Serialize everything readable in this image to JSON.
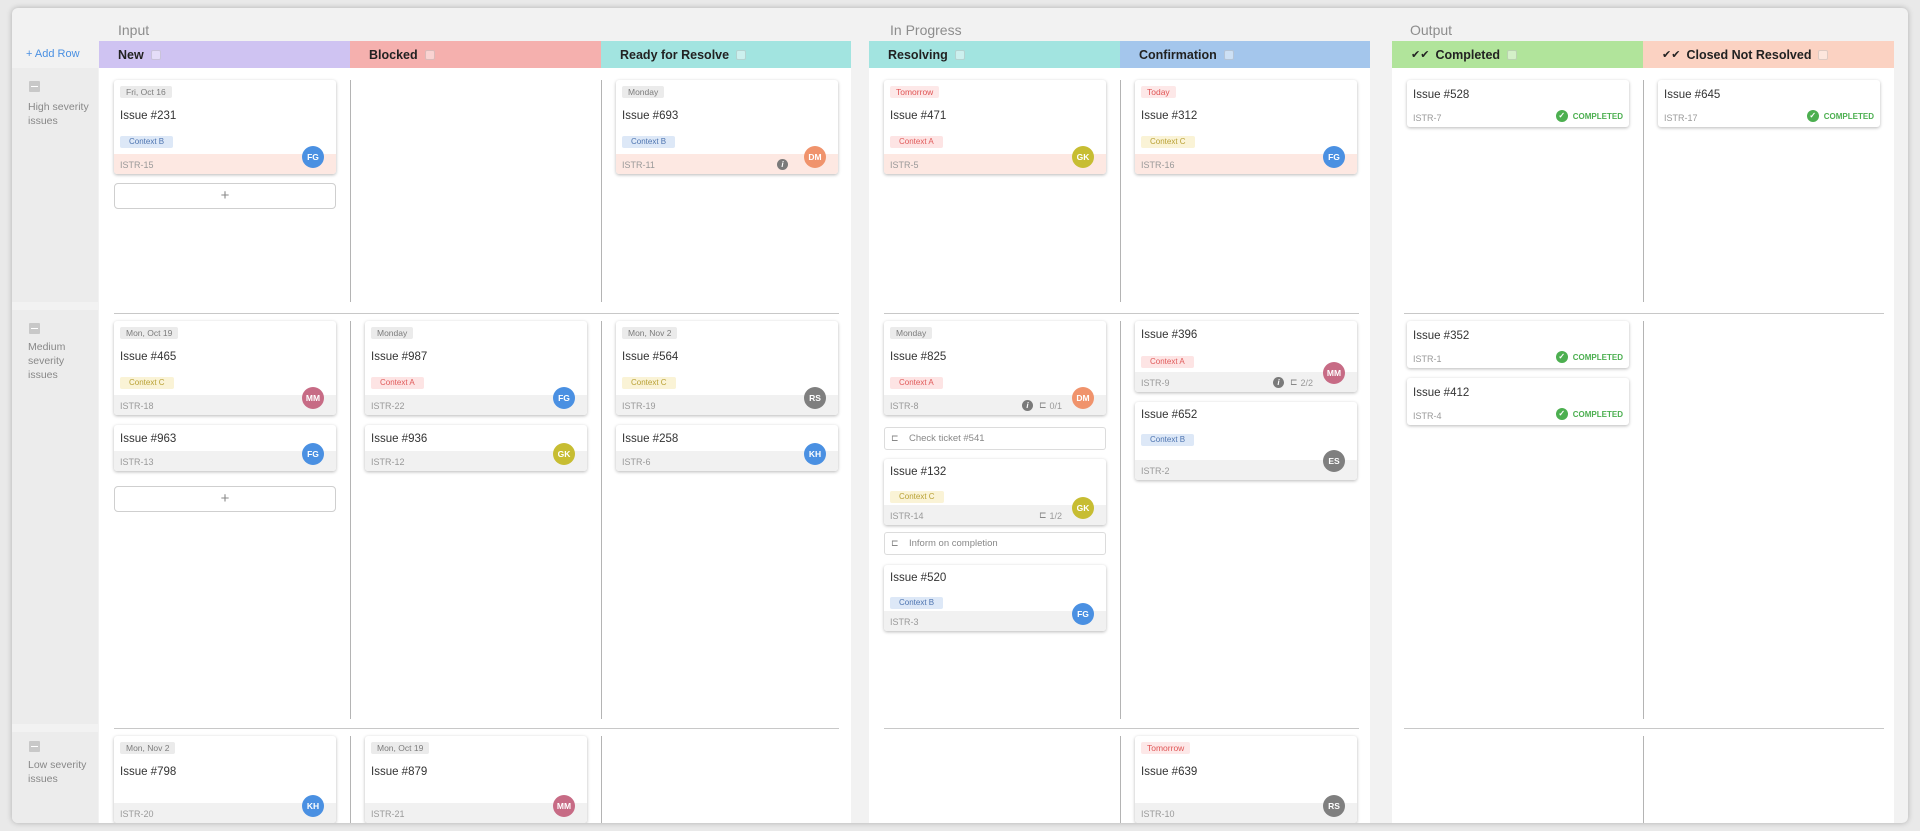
{
  "groups": {
    "input": "Input",
    "in_progress": "In Progress",
    "output": "Output"
  },
  "add_row": "+ Add Row",
  "columns": [
    {
      "label": "New",
      "color": "#cfc3f2"
    },
    {
      "label": "Blocked",
      "color": "#f5b0ae"
    },
    {
      "label": "Ready for Resolve",
      "color": "#a2e4e0"
    },
    {
      "label": "Resolving",
      "color": "#a2e4e0"
    },
    {
      "label": "Confirmation",
      "color": "#a4c6ec"
    },
    {
      "label": "Completed",
      "color": "#b1e49b"
    },
    {
      "label": "Closed Not Resolved",
      "color": "#fbd2c2"
    }
  ],
  "lanes": [
    "High severity issues",
    "Medium severity issues",
    "Low severity issues"
  ],
  "colors": {
    "FG": "#4a90e2",
    "MM": "#c76b85",
    "DM": "#f0936c",
    "GK": "#c7bd32",
    "RS": "#7f7f7f",
    "KH": "#4a90e2",
    "ES": "#7f7f7f"
  },
  "completed_label": "COMPLETED",
  "cards": {
    "c231": {
      "date": "Fri, Oct 16",
      "title": "Issue #231",
      "context": "Context B",
      "code": "ISTR-15",
      "avatar": "FG"
    },
    "c693": {
      "date": "Monday",
      "title": "Issue #693",
      "context": "Context B",
      "code": "ISTR-11",
      "avatar": "DM"
    },
    "c471": {
      "date": "Tomorrow",
      "title": "Issue #471",
      "context": "Context A",
      "code": "ISTR-5",
      "avatar": "GK"
    },
    "c312": {
      "date": "Today",
      "title": "Issue #312",
      "context": "Context C",
      "code": "ISTR-16",
      "avatar": "FG"
    },
    "c528": {
      "title": "Issue #528",
      "code": "ISTR-7"
    },
    "c645": {
      "title": "Issue #645",
      "code": "ISTR-17"
    },
    "c465": {
      "date": "Mon, Oct 19",
      "title": "Issue #465",
      "context": "Context C",
      "code": "ISTR-18",
      "avatar": "MM"
    },
    "c963": {
      "title": "Issue #963",
      "code": "ISTR-13",
      "avatar": "FG"
    },
    "c987": {
      "date": "Monday",
      "title": "Issue #987",
      "context": "Context A",
      "code": "ISTR-22",
      "avatar": "FG"
    },
    "c936": {
      "title": "Issue #936",
      "code": "ISTR-12",
      "avatar": "GK"
    },
    "c564": {
      "date": "Mon, Nov 2",
      "title": "Issue #564",
      "context": "Context C",
      "code": "ISTR-19",
      "avatar": "RS"
    },
    "c258": {
      "title": "Issue #258",
      "code": "ISTR-6",
      "avatar": "KH"
    },
    "c825": {
      "date": "Monday",
      "title": "Issue #825",
      "context": "Context A",
      "code": "ISTR-8",
      "avatar": "DM",
      "subtasks": "0/1",
      "subtask_text": "Check ticket #541"
    },
    "c132": {
      "title": "Issue #132",
      "context": "Context C",
      "code": "ISTR-14",
      "avatar": "GK",
      "subtasks": "1/2",
      "subtask_text": "Inform on completion"
    },
    "c520": {
      "title": "Issue #520",
      "context": "Context B",
      "code": "ISTR-3",
      "avatar": "FG"
    },
    "c396": {
      "title": "Issue #396",
      "context": "Context A",
      "code": "ISTR-9",
      "avatar": "MM",
      "subtasks": "2/2"
    },
    "c652": {
      "title": "Issue #652",
      "context": "Context B",
      "code": "ISTR-2",
      "avatar": "ES"
    },
    "c352": {
      "title": "Issue #352",
      "code": "ISTR-1"
    },
    "c412": {
      "title": "Issue #412",
      "code": "ISTR-4"
    },
    "c798": {
      "date": "Mon, Nov 2",
      "title": "Issue #798",
      "code": "ISTR-20",
      "avatar": "KH"
    },
    "c879": {
      "date": "Mon, Oct 19",
      "title": "Issue #879",
      "code": "ISTR-21",
      "avatar": "MM"
    },
    "c639": {
      "date": "Tomorrow",
      "title": "Issue #639",
      "code": "ISTR-10",
      "avatar": "RS"
    }
  }
}
